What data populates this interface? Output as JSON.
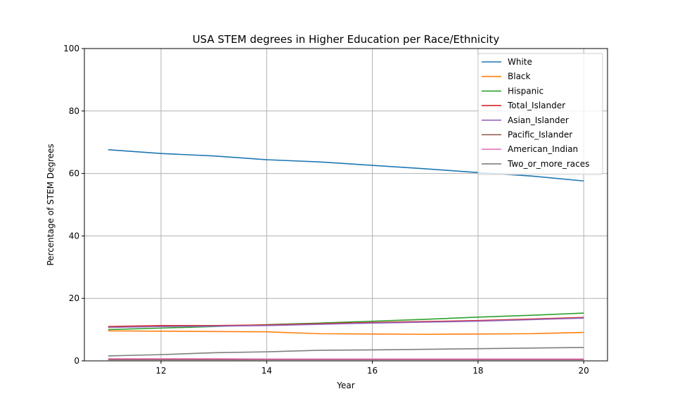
{
  "chart_data": {
    "type": "line",
    "title": "USA STEM degrees in Higher Education per Race/Ethnicity",
    "xlabel": "Year",
    "ylabel": "Percentage of STEM Degrees",
    "xlim": [
      10.55,
      20.45
    ],
    "ylim": [
      0,
      100
    ],
    "xticks": [
      12,
      14,
      16,
      18,
      20
    ],
    "yticks": [
      0,
      20,
      40,
      60,
      80,
      100
    ],
    "grid": true,
    "legend_position": "top-right",
    "x": [
      11,
      12,
      13,
      14,
      15,
      16,
      17,
      18,
      19,
      20
    ],
    "series": [
      {
        "name": "White",
        "color": "#1f77b4",
        "values": [
          67.6,
          66.4,
          65.6,
          64.4,
          63.7,
          62.6,
          61.5,
          60.3,
          59.2,
          57.6
        ]
      },
      {
        "name": "Black",
        "color": "#ff7f0e",
        "values": [
          9.6,
          9.5,
          9.4,
          9.3,
          8.7,
          8.6,
          8.5,
          8.6,
          8.7,
          9.1
        ]
      },
      {
        "name": "Hispanic",
        "color": "#2ca02c",
        "values": [
          10.0,
          10.5,
          11.0,
          11.6,
          12.1,
          12.7,
          13.3,
          14.0,
          14.6,
          15.3
        ]
      },
      {
        "name": "Total_Islander",
        "color": "#d62728",
        "values": [
          11.0,
          11.3,
          11.3,
          11.5,
          11.9,
          12.3,
          12.6,
          12.9,
          13.4,
          13.9
        ]
      },
      {
        "name": "Asian_Islander",
        "color": "#9467bd",
        "values": [
          10.7,
          11.0,
          11.1,
          11.3,
          11.7,
          12.1,
          12.4,
          12.7,
          13.2,
          13.7
        ]
      },
      {
        "name": "Pacific_Islander",
        "color": "#8c564b",
        "values": [
          0.4,
          0.4,
          0.4,
          0.4,
          0.4,
          0.4,
          0.4,
          0.4,
          0.4,
          0.4
        ]
      },
      {
        "name": "American_Indian",
        "color": "#e377c2",
        "values": [
          0.7,
          0.7,
          0.7,
          0.6,
          0.6,
          0.6,
          0.6,
          0.6,
          0.6,
          0.6
        ]
      },
      {
        "name": "Two_or_more_races",
        "color": "#7f7f7f",
        "values": [
          1.6,
          2.0,
          2.6,
          2.9,
          3.4,
          3.5,
          3.7,
          3.9,
          4.1,
          4.3
        ]
      }
    ]
  }
}
